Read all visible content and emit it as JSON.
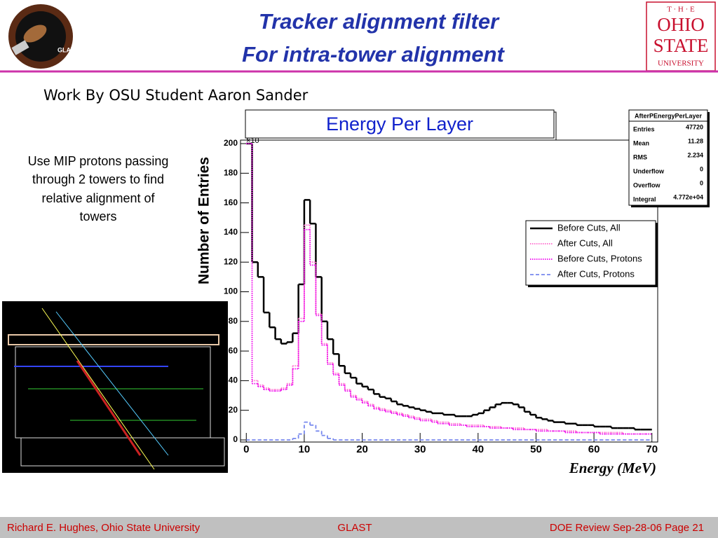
{
  "header": {
    "title_lines": [
      "Tracker alignment filter",
      "For intra-tower alignment"
    ],
    "glast_logo_text": "GLAST",
    "osu_logo": [
      "T · H · E",
      "OHIO",
      "STATE",
      "UNIVERSITY"
    ]
  },
  "subtitle": "Work By OSU Student Aaron Sander",
  "description_lines": [
    "Use MIP protons passing",
    "through 2 towers to find",
    "relative alignment of",
    "towers"
  ],
  "footer": {
    "left": "Richard E. Hughes, Ohio State University",
    "center": "GLAST",
    "right": "DOE Review Sep-28-06   Page   21"
  },
  "chart_data": {
    "type": "histogram",
    "title": "Energy Per Layer",
    "x_label": "Energy (MeV)",
    "y_label": "Number of Entries",
    "y_exponent_label": "×10",
    "bins": [
      0,
      1,
      2,
      3,
      4,
      5,
      6,
      7,
      8,
      9,
      10,
      11,
      12,
      13,
      14,
      15,
      16,
      17,
      18,
      19,
      20,
      21,
      22,
      23,
      24,
      25,
      26,
      27,
      28,
      29,
      30,
      31,
      32,
      33,
      34,
      35,
      36,
      37,
      38,
      39,
      40,
      41,
      42,
      43,
      44,
      45,
      46,
      47,
      48,
      49,
      50,
      51,
      52,
      53,
      54,
      55,
      56,
      57,
      58,
      59,
      60,
      61,
      62,
      63,
      64,
      65,
      66,
      67,
      68,
      69,
      70
    ],
    "series": [
      {
        "name": "Before Cuts, All",
        "color": "#000000",
        "style": "solid",
        "values": [
          200,
          120,
          110,
          86,
          76,
          68,
          65,
          66,
          72,
          105,
          162,
          146,
          110,
          80,
          68,
          58,
          50,
          45,
          42,
          38,
          36,
          34,
          31,
          29,
          28,
          26,
          24,
          23,
          22,
          21,
          20,
          19,
          18,
          18,
          17,
          17,
          16,
          16,
          16,
          17,
          18,
          20,
          22,
          24,
          25,
          25,
          24,
          22,
          19,
          17,
          15,
          14,
          13,
          12,
          12,
          11,
          11,
          10,
          10,
          10,
          9,
          9,
          9,
          8,
          8,
          8,
          8,
          7,
          7,
          7
        ]
      },
      {
        "name": "After Cuts, All",
        "color": "#ff66cc",
        "style": "dotted",
        "values": [
          200,
          40,
          37,
          35,
          34,
          34,
          35,
          38,
          50,
          82,
          145,
          120,
          85,
          65,
          52,
          45,
          38,
          34,
          30,
          28,
          26,
          24,
          22,
          21,
          20,
          19,
          18,
          17,
          16,
          15,
          14,
          14,
          13,
          12,
          12,
          11,
          11,
          10,
          10,
          10,
          10,
          9,
          9,
          9,
          8,
          8,
          8,
          8,
          7,
          7,
          7,
          7,
          6,
          6,
          6,
          6,
          6,
          5,
          5,
          5,
          5,
          5,
          5,
          5,
          5,
          4,
          4,
          4,
          4,
          4
        ]
      },
      {
        "name": "Before Cuts, Protons",
        "color": "#ee00ee",
        "style": "dotted",
        "values": [
          200,
          38,
          36,
          34,
          33,
          33,
          34,
          37,
          48,
          80,
          142,
          118,
          84,
          64,
          51,
          44,
          37,
          33,
          29,
          27,
          25,
          23,
          21,
          20,
          19,
          18,
          17,
          16,
          15,
          14,
          13,
          13,
          12,
          11,
          11,
          10,
          10,
          10,
          9,
          9,
          9,
          9,
          8,
          8,
          8,
          8,
          7,
          7,
          7,
          7,
          6,
          6,
          6,
          6,
          6,
          5,
          5,
          5,
          5,
          5,
          5,
          4,
          4,
          4,
          4,
          4,
          4,
          4,
          4,
          4
        ]
      },
      {
        "name": "After Cuts, Protons",
        "color": "#7788ee",
        "style": "dashed",
        "values": [
          0,
          0,
          0,
          0,
          0,
          0,
          0,
          0,
          1,
          4,
          12,
          10,
          6,
          3,
          1,
          0,
          0,
          0,
          0,
          0,
          0,
          0,
          0,
          0,
          0,
          0,
          0,
          0,
          0,
          0,
          0,
          0,
          0,
          0,
          0,
          0,
          0,
          0,
          0,
          0,
          0,
          0,
          0,
          0,
          0,
          0,
          0,
          0,
          0,
          0,
          0,
          0,
          0,
          0,
          0,
          0,
          0,
          0,
          0,
          0,
          0,
          0,
          0,
          0,
          0,
          0,
          0,
          0,
          0,
          0
        ]
      }
    ],
    "xlim": [
      -1,
      71
    ],
    "ylim": [
      0,
      200
    ],
    "xticks": [
      0,
      10,
      20,
      30,
      40,
      50,
      60,
      70
    ],
    "yticks": [
      0,
      20,
      40,
      60,
      80,
      100,
      120,
      140,
      160,
      180,
      200
    ],
    "legend": "upper right",
    "stats": {
      "title": "AfterPEnergyPerLayer",
      "rows": [
        [
          "Entries",
          47720
        ],
        [
          "Mean",
          11.28
        ],
        [
          "RMS",
          2.234
        ],
        [
          "Underflow",
          0
        ],
        [
          "Overflow",
          0
        ],
        [
          "Integral",
          "4.772e+04"
        ]
      ]
    }
  }
}
